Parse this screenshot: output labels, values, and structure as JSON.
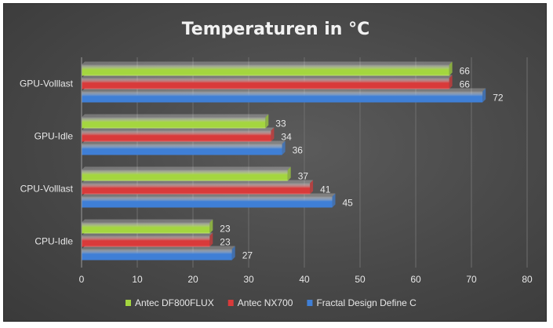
{
  "chart_data": {
    "type": "bar",
    "orientation": "horizontal",
    "title": "Temperaturen in °C",
    "categories": [
      "GPU-Volllast",
      "GPU-Idle",
      "CPU-Volllast",
      "CPU-Idle"
    ],
    "series": [
      {
        "name": "Antec DF800FLUX",
        "color": "#a4d63f",
        "values": [
          66,
          33,
          37,
          23
        ]
      },
      {
        "name": "Antec NX700",
        "color": "#d93a3a",
        "values": [
          66,
          34,
          41,
          23
        ]
      },
      {
        "name": "Fractal Design Define C",
        "color": "#3f7fd6",
        "values": [
          72,
          36,
          45,
          27
        ]
      }
    ],
    "xlim": [
      0,
      80
    ],
    "xticks": [
      0,
      10,
      20,
      30,
      40,
      50,
      60,
      70,
      80
    ],
    "grid": true,
    "data_labels": true,
    "legend": "bottom"
  }
}
